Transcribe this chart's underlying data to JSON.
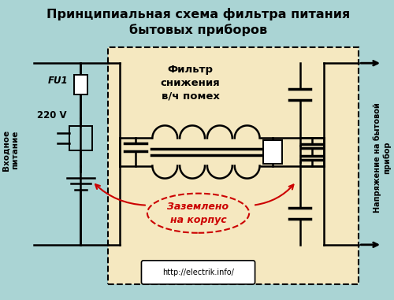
{
  "bg_color": "#aad4d4",
  "filter_bg_color": "#f5e8c0",
  "title": "Принципиальная схема фильтра питания\nбытовых приборов",
  "title_fontsize": 11.5,
  "label_left": "Входное\nпитание",
  "label_right": "Напряжение на бытовой\nприбор",
  "label_filter": "Фильтр\nснижения\nв/ч помех",
  "label_ground": "Заземлено\nна корпус",
  "label_fu1": "FU1",
  "label_220": "220 V",
  "url": "http://electrik.info/",
  "line_color": "#000000",
  "red_color": "#cc0000",
  "fuse_fill": "#ffffff",
  "varistor_fill": "#ffffff"
}
